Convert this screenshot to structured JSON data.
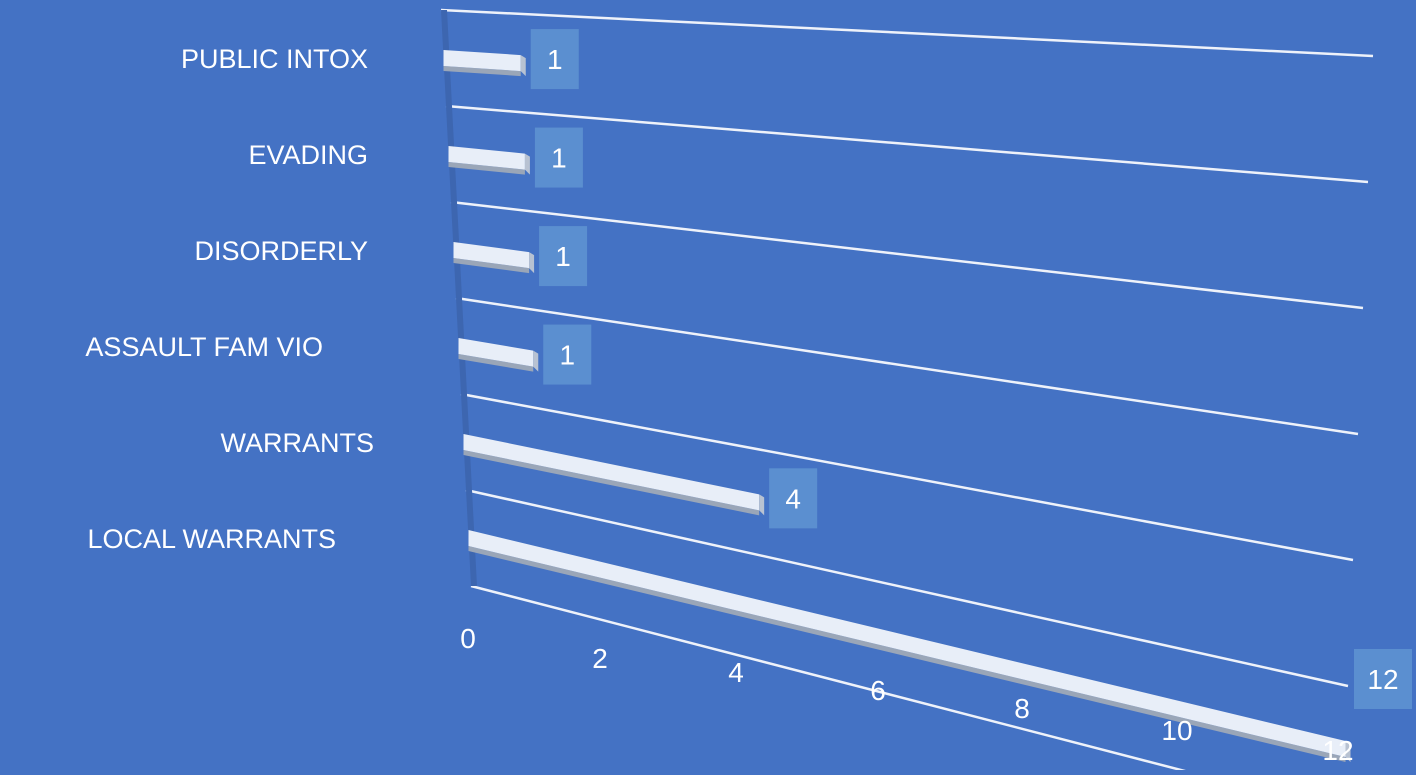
{
  "chart_data": {
    "type": "bar",
    "orientation": "horizontal",
    "categories": [
      "PUBLIC INTOX",
      "EVADING",
      "DISORDERLY",
      "ASSAULT FAM VIO",
      "WARRANTS",
      "LOCAL WARRANTS"
    ],
    "values": [
      1,
      1,
      1,
      1,
      4,
      12
    ],
    "x_ticks": [
      "0",
      "2",
      "4",
      "6",
      "8",
      "10",
      "12"
    ],
    "xlim": [
      0,
      12
    ],
    "title": "",
    "xlabel": "",
    "ylabel": "",
    "grid": true,
    "legend": "none",
    "colors": {
      "background": "#4472c4",
      "bar": "#e8eef8",
      "bar_shadow": "#9aa6b8",
      "label_box": "#5b8fd0",
      "text": "#ffffff",
      "grid": "#eef2fa"
    }
  }
}
